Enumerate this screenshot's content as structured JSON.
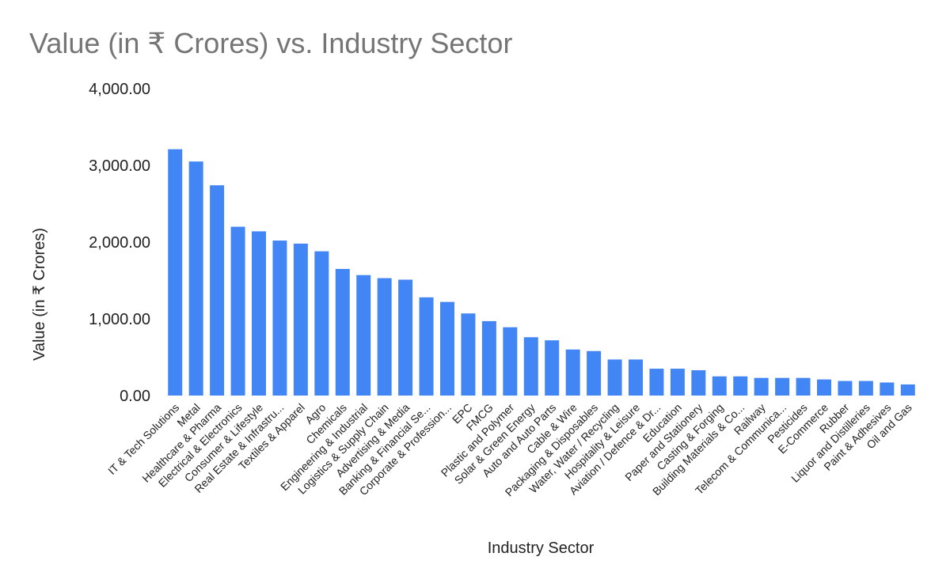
{
  "chart_data": {
    "type": "bar",
    "title": "Value (in ₹ Crores) vs. Industry Sector",
    "xlabel": "Industry Sector",
    "ylabel": "Value (in ₹ Crores)",
    "ylim": [
      0,
      4000
    ],
    "yticks": [
      "0.00",
      "1,000.00",
      "2,000.00",
      "3,000.00",
      "4,000.00"
    ],
    "grid": false,
    "legend": "none",
    "bar_color": "#4285f4",
    "categories": [
      "IT & Tech Solutions",
      "Metal",
      "Healthcare & Pharma",
      "Electrical & Electronics",
      "Consumer & Lifestyle",
      "Real Estate & Infrastru...",
      "Textiles & Apparel",
      "Agro",
      "Chemicals",
      "Engineering & Industrial",
      "Logistics & Supply Chain",
      "Advertising & Media",
      "Banking & Financial Se...",
      "Corporate & Profession...",
      "EPC",
      "FMCG",
      "Plastic and Polymer",
      "Solar & Green Energy",
      "Auto and Auto Parts",
      "Cable & Wire",
      "Packaging & Disposables",
      "Water, Water / Recycling",
      "Hospitality & Leisure",
      "Aviation / Defence & Dr...",
      "Education",
      "Paper and Stationery",
      "Casting & Forging",
      "Building Materials & Co...",
      "Railway",
      "Telecom & Communica...",
      "Pesticides",
      "E-Commerce",
      "Rubber",
      "Liquor and Distilleries",
      "Paint & Adhesives",
      "Oil and Gas"
    ],
    "values": [
      3210,
      3050,
      2740,
      2200,
      2140,
      2020,
      1980,
      1880,
      1650,
      1570,
      1530,
      1510,
      1280,
      1220,
      1070,
      970,
      890,
      760,
      720,
      600,
      580,
      470,
      470,
      350,
      350,
      330,
      250,
      250,
      230,
      230,
      230,
      210,
      190,
      190,
      170,
      145
    ]
  }
}
